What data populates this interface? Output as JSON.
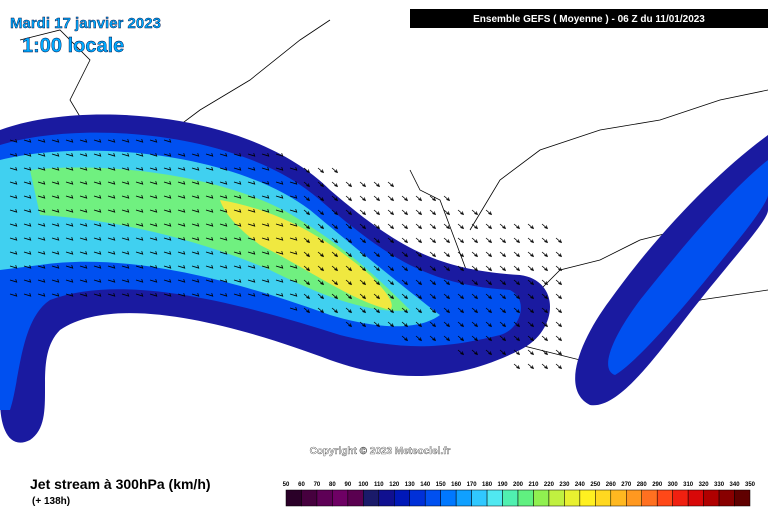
{
  "header": {
    "date": "Mardi 17 janvier 2023",
    "time": "1:00 locale",
    "model": "Ensemble GEFS  ( Moyenne )  -  06 Z du 11/01/2023"
  },
  "copyright": "Copyright © 2023 Meteociel.fr",
  "footer": {
    "title": "Jet stream à 300hPa (km/h)",
    "lead": "(+ 138h)"
  },
  "legend": {
    "ticks": [
      50,
      60,
      70,
      80,
      90,
      100,
      110,
      120,
      130,
      140,
      150,
      160,
      170,
      180,
      190,
      200,
      210,
      220,
      230,
      240,
      250,
      260,
      270,
      280,
      290,
      300,
      310,
      320,
      330,
      340,
      350
    ],
    "colors": [
      "#2a0028",
      "#46003e",
      "#5e0056",
      "#6e0064",
      "#5a0050",
      "#1a1a6a",
      "#101090",
      "#0018b8",
      "#0030d8",
      "#0050f0",
      "#0078ff",
      "#10a0ff",
      "#30c8ff",
      "#50e8f0",
      "#50f0b0",
      "#60f080",
      "#90f050",
      "#c0f040",
      "#e8f030",
      "#fff020",
      "#ffd820",
      "#ffb820",
      "#ff9820",
      "#ff7020",
      "#ff4818",
      "#f02010",
      "#d80808",
      "#b00000",
      "#880000",
      "#600000"
    ]
  }
}
